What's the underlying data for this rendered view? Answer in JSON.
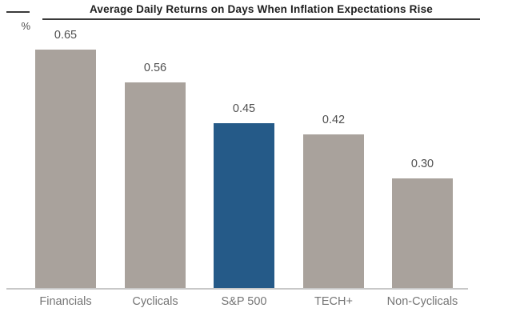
{
  "chart_data": {
    "type": "bar",
    "title": "Average Daily Returns on Days When Inflation Expectations Rise",
    "ylabel": "%",
    "xlabel": "",
    "categories": [
      "Financials",
      "Cyclicals",
      "S&P 500",
      "TECH+",
      "Non-Cyclicals"
    ],
    "values": [
      0.65,
      0.56,
      0.45,
      0.42,
      0.3
    ],
    "value_labels": [
      "0.65",
      "0.56",
      "0.45",
      "0.42",
      "0.30"
    ],
    "highlight_category": "S&P 500",
    "ylim": [
      0,
      0.7
    ],
    "grid": false,
    "data_labels": true,
    "legend": "none",
    "colors": {
      "default_bar": "#a9a29c",
      "highlight_bar": "#255a88",
      "title_text": "#1f1f1f",
      "value_label": "#4f4f4f",
      "category_label": "#757575",
      "axis_line": "#c8c8c8",
      "title_rule": "#3a3a3a",
      "background": "#ffffff"
    }
  }
}
